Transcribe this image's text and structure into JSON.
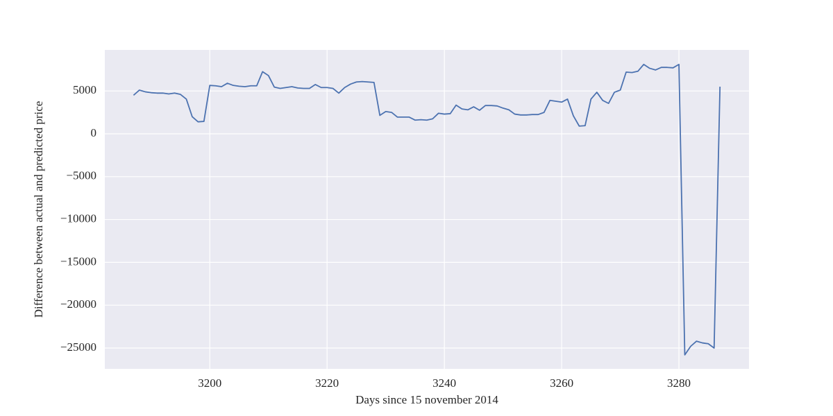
{
  "chart_data": {
    "type": "line",
    "xlabel": "Days since 15 november 2014",
    "ylabel": "Difference between actual and predicted price",
    "x": [
      3187,
      3188,
      3189,
      3190,
      3191,
      3192,
      3193,
      3194,
      3195,
      3196,
      3197,
      3198,
      3199,
      3200,
      3201,
      3202,
      3203,
      3204,
      3205,
      3206,
      3207,
      3208,
      3209,
      3210,
      3211,
      3212,
      3213,
      3214,
      3215,
      3216,
      3217,
      3218,
      3219,
      3220,
      3221,
      3222,
      3223,
      3224,
      3225,
      3226,
      3227,
      3228,
      3229,
      3230,
      3231,
      3232,
      3233,
      3234,
      3235,
      3236,
      3237,
      3238,
      3239,
      3240,
      3241,
      3242,
      3243,
      3244,
      3245,
      3246,
      3247,
      3248,
      3249,
      3250,
      3251,
      3252,
      3253,
      3254,
      3255,
      3256,
      3257,
      3258,
      3259,
      3260,
      3261,
      3262,
      3263,
      3264,
      3265,
      3266,
      3267,
      3268,
      3269,
      3270,
      3271,
      3272,
      3273,
      3274,
      3275,
      3276,
      3277,
      3278,
      3279,
      3280,
      3281,
      3282,
      3283,
      3284,
      3285,
      3286,
      3287
    ],
    "series": [
      {
        "color": "#4c72b0",
        "values": [
          4500,
          5100,
          4900,
          4800,
          4750,
          4750,
          4650,
          4750,
          4600,
          4050,
          2000,
          1400,
          1450,
          5650,
          5600,
          5500,
          5900,
          5650,
          5550,
          5500,
          5600,
          5600,
          7250,
          6800,
          5450,
          5300,
          5400,
          5500,
          5350,
          5300,
          5300,
          5750,
          5400,
          5400,
          5300,
          4750,
          5400,
          5800,
          6050,
          6100,
          6050,
          6000,
          2150,
          2600,
          2500,
          1950,
          1950,
          1950,
          1600,
          1650,
          1600,
          1750,
          2400,
          2300,
          2350,
          3350,
          2900,
          2800,
          3150,
          2750,
          3300,
          3300,
          3250,
          3000,
          2800,
          2300,
          2200,
          2200,
          2250,
          2250,
          2500,
          3900,
          3800,
          3700,
          4050,
          2100,
          900,
          950,
          4050,
          4850,
          3900,
          3550,
          4850,
          5100,
          7200,
          7150,
          7300,
          8100,
          7650,
          7450,
          7750,
          7750,
          7700,
          8100,
          -25800,
          -24800,
          -24200,
          -24400,
          -24500,
          -25000,
          5500
        ]
      }
    ],
    "xlim": [
      3182.1,
      3291.95
    ],
    "ylim": [
      -27430,
      9790
    ],
    "xticks": [
      3200,
      3220,
      3240,
      3260,
      3280
    ],
    "yticks": [
      5000,
      0,
      {
        "value": -5000,
        "label": "−5000"
      },
      {
        "value": -10000,
        "label": "−10000"
      },
      {
        "value": -15000,
        "label": "−15000"
      },
      {
        "value": -20000,
        "label": "−20000"
      },
      {
        "value": -25000,
        "label": "−25000"
      }
    ],
    "grid": true
  }
}
